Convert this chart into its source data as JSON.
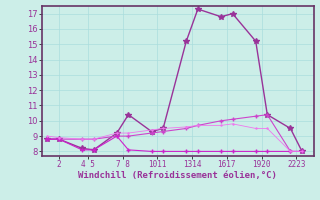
{
  "series": [
    {
      "x": [
        1,
        2,
        4,
        5,
        7,
        8,
        10,
        11,
        13,
        14,
        16,
        17,
        19,
        20,
        22,
        23
      ],
      "y": [
        8.8,
        8.8,
        8.2,
        8.1,
        9.2,
        10.4,
        9.3,
        9.5,
        15.2,
        17.3,
        16.8,
        17.0,
        15.2,
        10.4,
        9.5,
        8.0
      ],
      "color": "#993399",
      "marker": "*",
      "linewidth": 1.0,
      "markersize": 4
    },
    {
      "x": [
        1,
        2,
        4,
        5,
        7,
        8,
        10,
        11,
        13,
        14,
        16,
        17,
        19,
        20,
        22,
        23
      ],
      "y": [
        8.8,
        8.8,
        8.8,
        8.8,
        9.0,
        9.0,
        9.2,
        9.3,
        9.5,
        9.7,
        10.0,
        10.1,
        10.3,
        10.4,
        8.0,
        8.0
      ],
      "color": "#cc44cc",
      "marker": "+",
      "linewidth": 0.8,
      "markersize": 3
    },
    {
      "x": [
        1,
        2,
        4,
        5,
        7,
        8,
        10,
        11,
        13,
        14,
        16,
        17,
        19,
        20,
        22,
        23
      ],
      "y": [
        8.8,
        8.8,
        8.1,
        8.1,
        9.0,
        8.1,
        8.0,
        8.0,
        8.0,
        8.0,
        8.0,
        8.0,
        8.0,
        8.0,
        8.0,
        8.0
      ],
      "color": "#cc22cc",
      "marker": "+",
      "linewidth": 0.8,
      "markersize": 3
    },
    {
      "x": [
        1,
        2,
        4,
        5,
        7,
        8,
        10,
        11,
        13,
        14,
        16,
        17,
        19,
        20,
        22,
        23
      ],
      "y": [
        9.0,
        8.9,
        8.8,
        8.8,
        9.2,
        9.2,
        9.4,
        9.5,
        9.6,
        9.7,
        9.7,
        9.8,
        9.5,
        9.5,
        8.0,
        8.0
      ],
      "color": "#ee77ee",
      "marker": "+",
      "linewidth": 0.6,
      "markersize": 2
    }
  ],
  "ylim": [
    7.7,
    17.5
  ],
  "yticks": [
    8,
    9,
    10,
    11,
    12,
    13,
    14,
    15,
    16,
    17
  ],
  "xlim": [
    0.5,
    24.0
  ],
  "xtick_positions": [
    2,
    4.5,
    7.5,
    10.5,
    13.5,
    16.5,
    19.5,
    22.5
  ],
  "xtick_labels": [
    "2",
    "4 5",
    "7 8",
    "1011",
    "1314",
    "1617",
    "1920",
    "2223"
  ],
  "xlabel": "Windchill (Refroidissement éolien,°C)",
  "bg_color": "#cceee8",
  "grid_color": "#aadddd",
  "line_color": "#663366",
  "text_color": "#993399"
}
